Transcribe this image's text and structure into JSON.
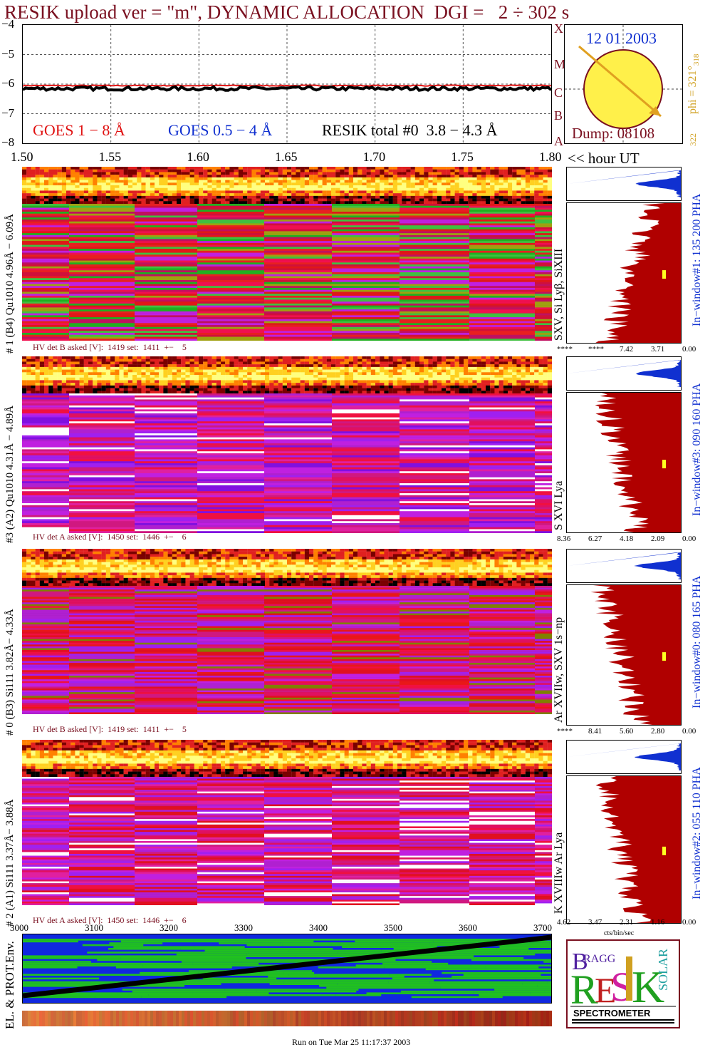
{
  "header": {
    "title": "RESIK upload ver = \"m\", DYNAMIC ALLOCATION  DGI =   2 ÷ 302 s"
  },
  "chart_data": [
    {
      "type": "line",
      "name": "goes-lightcurve",
      "yticks": [
        "−4",
        "−5",
        "−6",
        "−7",
        "−8"
      ],
      "ylim": [
        -8,
        -4
      ],
      "xlim": [
        1.5,
        1.8
      ],
      "xticks": [
        "1.50",
        "1.55",
        "1.60",
        "1.65",
        "1.70",
        "1.75",
        "1.80"
      ],
      "xunit_label": "<< hour UT",
      "grid": true,
      "right_letters": [
        "A",
        "B",
        "C",
        "M",
        "X"
      ],
      "legend": [
        {
          "text": "GOES 1 − 8 Å",
          "color": "#e01010"
        },
        {
          "text": "GOES 0.5 − 4 Å",
          "color": "#1030d0"
        },
        {
          "text": "RESIK total #0  3.8 − 4.3 Å",
          "color": "#000000"
        }
      ],
      "series": [
        {
          "color": "#e01010",
          "level": -6.05
        },
        {
          "color": "#000000",
          "level": -6.15
        }
      ]
    },
    {
      "type": "heatmap",
      "name": "detector-spectrograms",
      "panels": [
        {
          "ylabel": "# 1 (B4) Qu1010 4.96Å − 6.09Å",
          "lines": "SXV, Si Lyβ, SiXIII",
          "hv": "HV det B asked [V]:  1419 set:  1411  +−    5",
          "window": "In−window#1:  135 200 PHA",
          "pha_ticks": [
            "****",
            "****",
            "7.42",
            "3.71",
            "0.00"
          ],
          "palette": "red-green"
        },
        {
          "ylabel": "#3 (A2) Qu1010  4.31Å − 4.89Å",
          "lines": "S XVI Lya",
          "hv": "HV det A asked [V]:  1450 set:  1446  +−    6",
          "window": "In−window#3:  090 160 PHA",
          "pha_ticks": [
            "8.36",
            "6.27",
            "4.18",
            "2.09",
            "0.00"
          ],
          "palette": "magenta-violet"
        },
        {
          "ylabel": "# 0 (B3) Si111  3.82Å− 4.33Å",
          "lines": "Ar XVIIw,  SXV 1s−np",
          "hv": "HV det B asked [V]:  1419 set:  1411  +−    5",
          "window": "In−window#0:  080 165 PHA",
          "pha_ticks": [
            "****",
            "8.41",
            "5.60",
            "2.80",
            "0.00"
          ],
          "palette": "red-magenta"
        },
        {
          "ylabel": "# 2 (A1) Si111  3.37Å− 3.88Å",
          "lines": "K XVIIIw  Ar Lya",
          "hv": "HV det A asked [V]:  1450 set:  1446  +−    6",
          "window": "In−window#2:  055 110 PHA",
          "pha_ticks": [
            "4.62",
            "3.47",
            "2.31",
            "1.16",
            "0.00"
          ],
          "palette": "magenta-red"
        }
      ],
      "bottom_xticks": [
        "3000",
        "3100",
        "3200",
        "3300",
        "3400",
        "3500",
        "3600",
        "3700"
      ],
      "pha_unit": "cts/bin/sec"
    }
  ],
  "sun_panel": {
    "date": "12 01 2003",
    "dump": "Dump: 08108",
    "phi": "phi = 321°",
    "phi_sub": "318",
    "phi_bottom": "322",
    "letters": [
      "X",
      "M",
      "C",
      "B",
      "A"
    ]
  },
  "env_panel": {
    "ylabel": "EL. & PROT.Env."
  },
  "logo": {
    "colors": {
      "bragg": "#5020a0",
      "r": "#20a020",
      "e": "#c02020",
      "s": "#d020a0",
      "i": "#d0a020",
      "k": "#20a020",
      "solar": "#20a0a0"
    },
    "word": "SPECTROMETER"
  },
  "footer": {
    "run_text": "Run on Tue Mar 25 11:17:37 2003"
  },
  "colors": {
    "title": "#7a1020",
    "heat": [
      "#000000",
      "#7a0000",
      "#e02020",
      "#ff8000",
      "#ffd020",
      "#ffff80"
    ],
    "blue": "#1030d0",
    "green": "#20c020",
    "dark_red": "#b00000"
  }
}
